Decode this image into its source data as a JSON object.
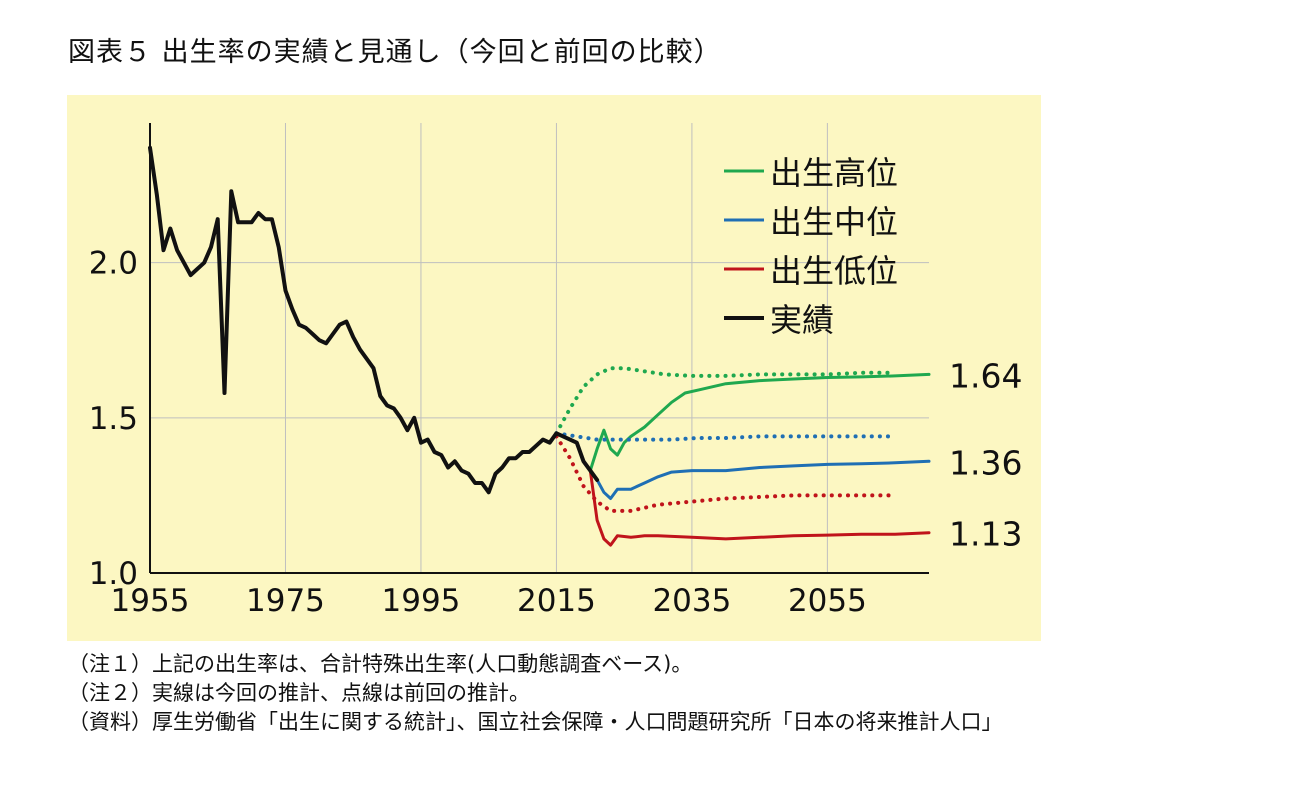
{
  "title": "図表５ 出生率の実績と見通し（今回と前回の比較）",
  "notes": [
    "（注１）上記の出生率は、合計特殊出生率(人口動態調査ベース)。",
    "（注２）実線は今回の推計、点線は前回の推計。",
    "（資料）厚生労働省「出生に関する統計」、国立社会保障・人口問題研究所「日本の将来推計人口」"
  ],
  "colors": {
    "background": "#fcf7c2",
    "high": "#1fa84f",
    "medium": "#1f6fb4",
    "low": "#c0141b",
    "actual": "#111111",
    "grid": "#bfbfbf"
  },
  "chart_data": {
    "type": "line",
    "title": "",
    "xlabel": "",
    "ylabel": "",
    "xlim": [
      1955,
      2070
    ],
    "ylim": [
      1.0,
      2.45
    ],
    "x_ticks": [
      1955,
      1975,
      1995,
      2015,
      2035,
      2055
    ],
    "y_ticks": [
      1.0,
      1.5,
      2.0
    ],
    "y_tick_labels": [
      "1.0",
      "1.5",
      "2.0"
    ],
    "grid": true,
    "legend_position": "top-right",
    "legend": [
      "出生高位",
      "出生中位",
      "出生低位",
      "実績"
    ],
    "end_labels": [
      {
        "series": "出生高位",
        "text": "1.64"
      },
      {
        "series": "出生中位",
        "text": "1.36"
      },
      {
        "series": "出生低位",
        "text": "1.13"
      }
    ],
    "series": [
      {
        "name": "実績",
        "style": "solid",
        "color_key": "actual",
        "points": [
          [
            1955,
            2.37
          ],
          [
            1956,
            2.22
          ],
          [
            1957,
            2.04
          ],
          [
            1958,
            2.11
          ],
          [
            1959,
            2.04
          ],
          [
            1960,
            2.0
          ],
          [
            1961,
            1.96
          ],
          [
            1962,
            1.98
          ],
          [
            1963,
            2.0
          ],
          [
            1964,
            2.05
          ],
          [
            1965,
            2.14
          ],
          [
            1966,
            1.58
          ],
          [
            1967,
            2.23
          ],
          [
            1968,
            2.13
          ],
          [
            1969,
            2.13
          ],
          [
            1970,
            2.13
          ],
          [
            1971,
            2.16
          ],
          [
            1972,
            2.14
          ],
          [
            1973,
            2.14
          ],
          [
            1974,
            2.05
          ],
          [
            1975,
            1.91
          ],
          [
            1976,
            1.85
          ],
          [
            1977,
            1.8
          ],
          [
            1978,
            1.79
          ],
          [
            1979,
            1.77
          ],
          [
            1980,
            1.75
          ],
          [
            1981,
            1.74
          ],
          [
            1982,
            1.77
          ],
          [
            1983,
            1.8
          ],
          [
            1984,
            1.81
          ],
          [
            1985,
            1.76
          ],
          [
            1986,
            1.72
          ],
          [
            1987,
            1.69
          ],
          [
            1988,
            1.66
          ],
          [
            1989,
            1.57
          ],
          [
            1990,
            1.54
          ],
          [
            1991,
            1.53
          ],
          [
            1992,
            1.5
          ],
          [
            1993,
            1.46
          ],
          [
            1994,
            1.5
          ],
          [
            1995,
            1.42
          ],
          [
            1996,
            1.43
          ],
          [
            1997,
            1.39
          ],
          [
            1998,
            1.38
          ],
          [
            1999,
            1.34
          ],
          [
            2000,
            1.36
          ],
          [
            2001,
            1.33
          ],
          [
            2002,
            1.32
          ],
          [
            2003,
            1.29
          ],
          [
            2004,
            1.29
          ],
          [
            2005,
            1.26
          ],
          [
            2006,
            1.32
          ],
          [
            2007,
            1.34
          ],
          [
            2008,
            1.37
          ],
          [
            2009,
            1.37
          ],
          [
            2010,
            1.39
          ],
          [
            2011,
            1.39
          ],
          [
            2012,
            1.41
          ],
          [
            2013,
            1.43
          ],
          [
            2014,
            1.42
          ],
          [
            2015,
            1.45
          ],
          [
            2016,
            1.44
          ],
          [
            2017,
            1.43
          ],
          [
            2018,
            1.42
          ],
          [
            2019,
            1.36
          ],
          [
            2020,
            1.33
          ],
          [
            2021,
            1.3
          ]
        ]
      },
      {
        "name": "出生高位",
        "style": "solid",
        "color_key": "high",
        "points": [
          [
            2020,
            1.33
          ],
          [
            2021,
            1.4
          ],
          [
            2022,
            1.46
          ],
          [
            2023,
            1.4
          ],
          [
            2024,
            1.38
          ],
          [
            2025,
            1.42
          ],
          [
            2026,
            1.44
          ],
          [
            2028,
            1.47
          ],
          [
            2030,
            1.51
          ],
          [
            2032,
            1.55
          ],
          [
            2034,
            1.58
          ],
          [
            2036,
            1.59
          ],
          [
            2040,
            1.61
          ],
          [
            2045,
            1.62
          ],
          [
            2050,
            1.625
          ],
          [
            2055,
            1.63
          ],
          [
            2060,
            1.632
          ],
          [
            2065,
            1.635
          ],
          [
            2070,
            1.64
          ]
        ]
      },
      {
        "name": "出生中位",
        "style": "solid",
        "color_key": "medium",
        "points": [
          [
            2020,
            1.33
          ],
          [
            2021,
            1.3
          ],
          [
            2022,
            1.26
          ],
          [
            2023,
            1.24
          ],
          [
            2024,
            1.27
          ],
          [
            2026,
            1.27
          ],
          [
            2028,
            1.29
          ],
          [
            2030,
            1.31
          ],
          [
            2032,
            1.325
          ],
          [
            2035,
            1.33
          ],
          [
            2040,
            1.33
          ],
          [
            2045,
            1.34
          ],
          [
            2050,
            1.345
          ],
          [
            2055,
            1.35
          ],
          [
            2060,
            1.352
          ],
          [
            2065,
            1.355
          ],
          [
            2070,
            1.36
          ]
        ]
      },
      {
        "name": "出生低位",
        "style": "solid",
        "color_key": "low",
        "points": [
          [
            2020,
            1.33
          ],
          [
            2021,
            1.17
          ],
          [
            2022,
            1.11
          ],
          [
            2023,
            1.09
          ],
          [
            2024,
            1.12
          ],
          [
            2026,
            1.115
          ],
          [
            2028,
            1.12
          ],
          [
            2030,
            1.12
          ],
          [
            2035,
            1.115
          ],
          [
            2040,
            1.11
          ],
          [
            2045,
            1.115
          ],
          [
            2050,
            1.12
          ],
          [
            2055,
            1.122
          ],
          [
            2060,
            1.125
          ],
          [
            2065,
            1.125
          ],
          [
            2070,
            1.13
          ]
        ]
      },
      {
        "name": "出生高位（前回）",
        "style": "dotted",
        "color_key": "high",
        "points": [
          [
            2015,
            1.45
          ],
          [
            2017,
            1.53
          ],
          [
            2019,
            1.6
          ],
          [
            2021,
            1.64
          ],
          [
            2023,
            1.66
          ],
          [
            2025,
            1.66
          ],
          [
            2028,
            1.65
          ],
          [
            2031,
            1.64
          ],
          [
            2035,
            1.635
          ],
          [
            2040,
            1.635
          ],
          [
            2045,
            1.64
          ],
          [
            2050,
            1.64
          ],
          [
            2055,
            1.64
          ],
          [
            2060,
            1.645
          ],
          [
            2065,
            1.645
          ]
        ]
      },
      {
        "name": "出生中位（前回）",
        "style": "dotted",
        "color_key": "medium",
        "points": [
          [
            2015,
            1.45
          ],
          [
            2018,
            1.44
          ],
          [
            2021,
            1.43
          ],
          [
            2024,
            1.43
          ],
          [
            2028,
            1.43
          ],
          [
            2032,
            1.43
          ],
          [
            2036,
            1.435
          ],
          [
            2040,
            1.435
          ],
          [
            2045,
            1.44
          ],
          [
            2050,
            1.44
          ],
          [
            2055,
            1.44
          ],
          [
            2060,
            1.44
          ],
          [
            2065,
            1.44
          ]
        ]
      },
      {
        "name": "出生低位（前回）",
        "style": "dotted",
        "color_key": "low",
        "points": [
          [
            2015,
            1.44
          ],
          [
            2017,
            1.37
          ],
          [
            2019,
            1.28
          ],
          [
            2021,
            1.23
          ],
          [
            2023,
            1.2
          ],
          [
            2026,
            1.2
          ],
          [
            2030,
            1.22
          ],
          [
            2035,
            1.23
          ],
          [
            2040,
            1.24
          ],
          [
            2045,
            1.245
          ],
          [
            2050,
            1.25
          ],
          [
            2055,
            1.25
          ],
          [
            2060,
            1.25
          ],
          [
            2065,
            1.25
          ]
        ]
      }
    ]
  }
}
